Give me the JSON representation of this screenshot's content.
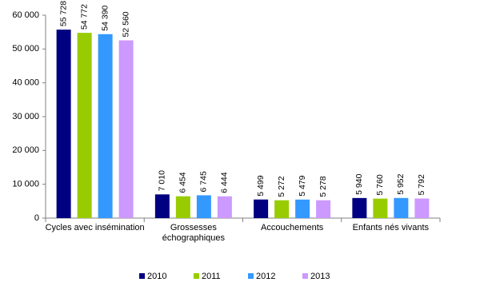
{
  "chart_data": {
    "type": "bar",
    "categories": [
      "Cycles avec insémination",
      "Grossesses\néchographiques",
      "Accouchements",
      "Enfants nés vivants"
    ],
    "series": [
      {
        "name": "2010",
        "color": "#000080",
        "values": [
          55728,
          7010,
          5499,
          5940
        ],
        "value_labels": [
          "55 728",
          "7 010",
          "5 499",
          "5 940"
        ]
      },
      {
        "name": "2011",
        "color": "#99cc00",
        "values": [
          54772,
          6454,
          5272,
          5760
        ],
        "value_labels": [
          "54 772",
          "6 454",
          "5 272",
          "5 760"
        ]
      },
      {
        "name": "2012",
        "color": "#3399ff",
        "values": [
          54390,
          6745,
          5479,
          5952
        ],
        "value_labels": [
          "54 390",
          "6 745",
          "5 479",
          "5 952"
        ]
      },
      {
        "name": "2013",
        "color": "#cc99ff",
        "values": [
          52560,
          6444,
          5278,
          5792
        ],
        "value_labels": [
          "52 560",
          "6 444",
          "5 278",
          "5 792"
        ]
      }
    ],
    "ylim": [
      0,
      60000
    ],
    "yticks": [
      0,
      {
        "value": 10000,
        "label": "10 000"
      },
      {
        "value": 20000,
        "label": "20 000"
      },
      {
        "value": 30000,
        "label": "30 000"
      },
      {
        "value": 40000,
        "label": "40 000"
      },
      {
        "value": 50000,
        "label": "50 000"
      },
      {
        "value": 60000,
        "label": "60 000"
      }
    ],
    "legend": "bottom"
  }
}
